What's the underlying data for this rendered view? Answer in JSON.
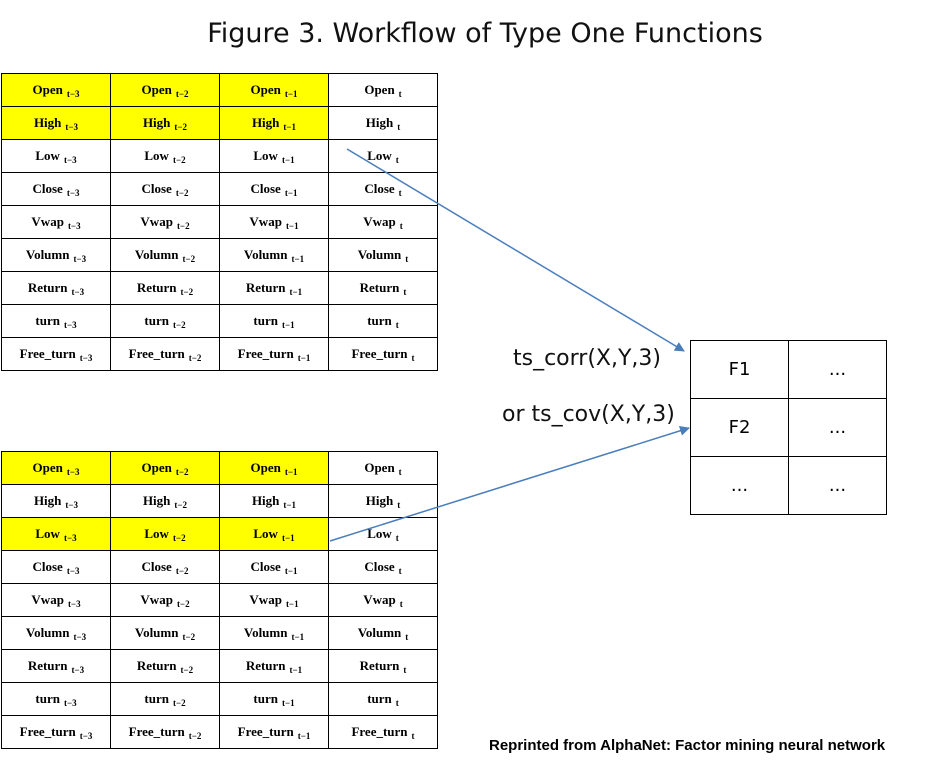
{
  "title": "Figure 3. Workflow of Type One Functions",
  "top_table": {
    "rows": [
      {
        "name": "Open",
        "highlight": true
      },
      {
        "name": "High",
        "highlight": true
      },
      {
        "name": "Low",
        "highlight": false
      },
      {
        "name": "Close",
        "highlight": false
      },
      {
        "name": "Vwap",
        "highlight": false
      },
      {
        "name": "Volumn",
        "highlight": false
      },
      {
        "name": "Return",
        "highlight": false
      },
      {
        "name": "turn",
        "highlight": false
      },
      {
        "name": "Free_turn",
        "highlight": false
      }
    ]
  },
  "bottom_table": {
    "rows": [
      {
        "name": "Open",
        "highlight": true
      },
      {
        "name": "High",
        "highlight": false
      },
      {
        "name": "Low",
        "highlight": true
      },
      {
        "name": "Close",
        "highlight": false
      },
      {
        "name": "Vwap",
        "highlight": false
      },
      {
        "name": "Volumn",
        "highlight": false
      },
      {
        "name": "Return",
        "highlight": false
      },
      {
        "name": "turn",
        "highlight": false
      },
      {
        "name": "Free_turn",
        "highlight": false
      }
    ]
  },
  "time_subscripts": [
    "t−3",
    "t−2",
    "t−1",
    "t"
  ],
  "highlight_columns": 3,
  "highlight_color": "#ffff00",
  "arrow_color": "#4a7ebb",
  "functions": {
    "corr": "ts_corr(X,Y,3)",
    "cov": "or ts_cov(X,Y,3)"
  },
  "result_table": {
    "rows": [
      [
        "F1",
        "..."
      ],
      [
        "F2",
        "..."
      ],
      [
        "...",
        "..."
      ]
    ]
  },
  "credit": "Reprinted from AlphaNet: Factor mining neural network"
}
